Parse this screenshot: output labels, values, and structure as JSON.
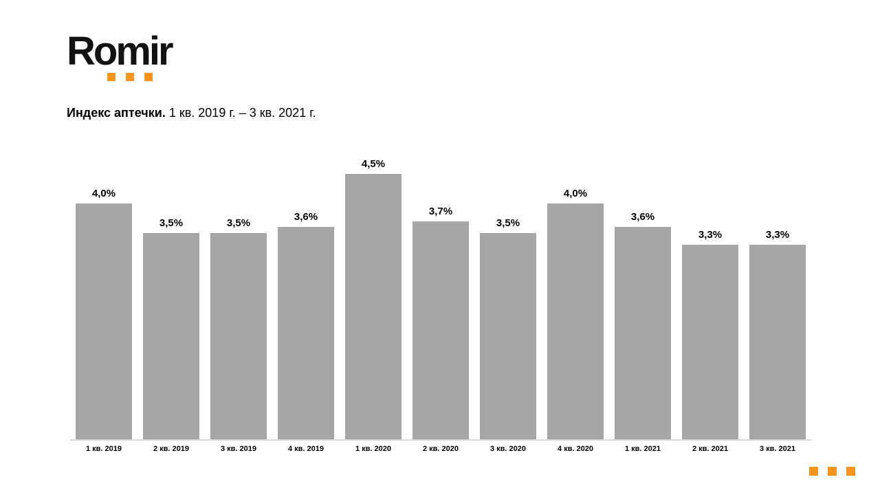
{
  "logo": {
    "text": "Romir"
  },
  "title": {
    "bold": "Индекс аптечки.",
    "rest": " 1 кв. 2019 г. – 3 кв. 2021 г."
  },
  "chart_data": {
    "type": "bar",
    "title": "Индекс аптечки. 1 кв. 2019 г. – 3 кв. 2021 г.",
    "categories": [
      "1 кв. 2019",
      "2 кв. 2019",
      "3 кв. 2019",
      "4 кв. 2019",
      "1 кв. 2020",
      "2 кв. 2020",
      "3 кв. 2020",
      "4 кв. 2020",
      "1 кв. 2021",
      "2 кв. 2021",
      "3 кв. 2021"
    ],
    "values": [
      4.0,
      3.5,
      3.5,
      3.6,
      4.5,
      3.7,
      3.5,
      4.0,
      3.6,
      3.3,
      3.3
    ],
    "labels": [
      "4,0%",
      "3,5%",
      "3,5%",
      "3,6%",
      "4,5%",
      "3,7%",
      "3,5%",
      "4,0%",
      "3,6%",
      "3,3%",
      "3,3%"
    ],
    "xlabel": "",
    "ylabel": "",
    "ylim": [
      0,
      4.7
    ],
    "grid": false,
    "legend": false,
    "data_labels": true,
    "bar_color": "#A6A6A6",
    "axis_line_color": "#D9D9D9",
    "label_color": "#000000"
  },
  "colors": {
    "accent_orange": "#F6941E",
    "logo_black": "#121212",
    "background": "#FFFFFF"
  }
}
